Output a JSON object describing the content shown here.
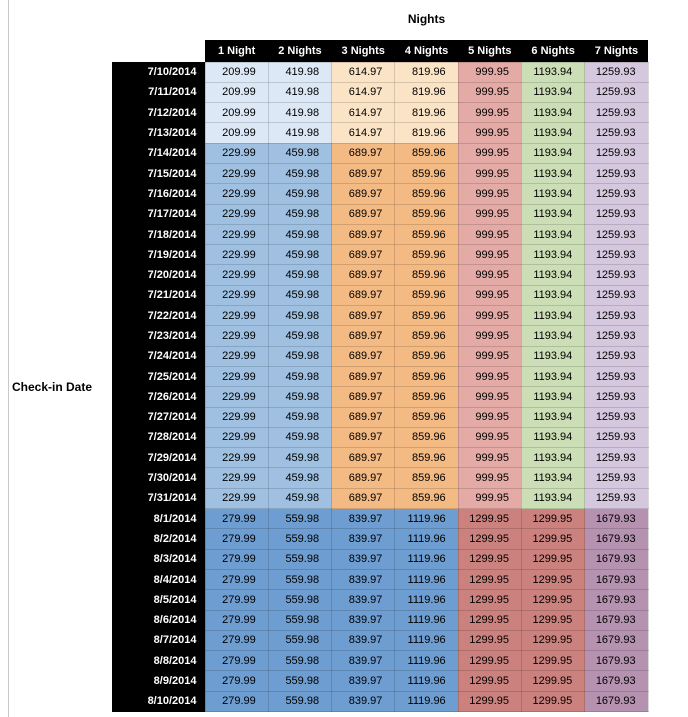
{
  "chart_data": {
    "type": "table",
    "title": "Nights",
    "row_axis_label": "Check-in Date",
    "columns": [
      "1 Night",
      "2 Nights",
      "3 Nights",
      "4 Nights",
      "5 Nights",
      "6 Nights",
      "7 Nights"
    ],
    "header_bg": "#000000",
    "header_text_color": "#ffffff",
    "band_colors": {
      "early": [
        "#DCE8F5",
        "#DCE8F5",
        "#FBE4C6",
        "#FBE4C6",
        "#E4ABA6",
        "#CCDEB6",
        "#D5C8DE"
      ],
      "mid": [
        "#9FC0E1",
        "#9FC0E1",
        "#F4BA83",
        "#F4BA83",
        "#E4ABA6",
        "#CCDEB6",
        "#D5C8DE"
      ],
      "late": [
        "#6D9DD1",
        "#6D9DD1",
        "#6D9DD1",
        "#6D9DD1",
        "#CB817D",
        "#CB817D",
        "#B692B1"
      ]
    },
    "rows": [
      {
        "date": "7/10/2014",
        "band": "early",
        "values": [
          "209.99",
          "419.98",
          "614.97",
          "819.96",
          "999.95",
          "1193.94",
          "1259.93"
        ]
      },
      {
        "date": "7/11/2014",
        "band": "early",
        "values": [
          "209.99",
          "419.98",
          "614.97",
          "819.96",
          "999.95",
          "1193.94",
          "1259.93"
        ]
      },
      {
        "date": "7/12/2014",
        "band": "early",
        "values": [
          "209.99",
          "419.98",
          "614.97",
          "819.96",
          "999.95",
          "1193.94",
          "1259.93"
        ]
      },
      {
        "date": "7/13/2014",
        "band": "early",
        "values": [
          "209.99",
          "419.98",
          "614.97",
          "819.96",
          "999.95",
          "1193.94",
          "1259.93"
        ]
      },
      {
        "date": "7/14/2014",
        "band": "mid",
        "values": [
          "229.99",
          "459.98",
          "689.97",
          "859.96",
          "999.95",
          "1193.94",
          "1259.93"
        ]
      },
      {
        "date": "7/15/2014",
        "band": "mid",
        "values": [
          "229.99",
          "459.98",
          "689.97",
          "859.96",
          "999.95",
          "1193.94",
          "1259.93"
        ]
      },
      {
        "date": "7/16/2014",
        "band": "mid",
        "values": [
          "229.99",
          "459.98",
          "689.97",
          "859.96",
          "999.95",
          "1193.94",
          "1259.93"
        ]
      },
      {
        "date": "7/17/2014",
        "band": "mid",
        "values": [
          "229.99",
          "459.98",
          "689.97",
          "859.96",
          "999.95",
          "1193.94",
          "1259.93"
        ]
      },
      {
        "date": "7/18/2014",
        "band": "mid",
        "values": [
          "229.99",
          "459.98",
          "689.97",
          "859.96",
          "999.95",
          "1193.94",
          "1259.93"
        ]
      },
      {
        "date": "7/19/2014",
        "band": "mid",
        "values": [
          "229.99",
          "459.98",
          "689.97",
          "859.96",
          "999.95",
          "1193.94",
          "1259.93"
        ]
      },
      {
        "date": "7/20/2014",
        "band": "mid",
        "values": [
          "229.99",
          "459.98",
          "689.97",
          "859.96",
          "999.95",
          "1193.94",
          "1259.93"
        ]
      },
      {
        "date": "7/21/2014",
        "band": "mid",
        "values": [
          "229.99",
          "459.98",
          "689.97",
          "859.96",
          "999.95",
          "1193.94",
          "1259.93"
        ]
      },
      {
        "date": "7/22/2014",
        "band": "mid",
        "values": [
          "229.99",
          "459.98",
          "689.97",
          "859.96",
          "999.95",
          "1193.94",
          "1259.93"
        ]
      },
      {
        "date": "7/23/2014",
        "band": "mid",
        "values": [
          "229.99",
          "459.98",
          "689.97",
          "859.96",
          "999.95",
          "1193.94",
          "1259.93"
        ]
      },
      {
        "date": "7/24/2014",
        "band": "mid",
        "values": [
          "229.99",
          "459.98",
          "689.97",
          "859.96",
          "999.95",
          "1193.94",
          "1259.93"
        ]
      },
      {
        "date": "7/25/2014",
        "band": "mid",
        "values": [
          "229.99",
          "459.98",
          "689.97",
          "859.96",
          "999.95",
          "1193.94",
          "1259.93"
        ]
      },
      {
        "date": "7/26/2014",
        "band": "mid",
        "values": [
          "229.99",
          "459.98",
          "689.97",
          "859.96",
          "999.95",
          "1193.94",
          "1259.93"
        ]
      },
      {
        "date": "7/27/2014",
        "band": "mid",
        "values": [
          "229.99",
          "459.98",
          "689.97",
          "859.96",
          "999.95",
          "1193.94",
          "1259.93"
        ]
      },
      {
        "date": "7/28/2014",
        "band": "mid",
        "values": [
          "229.99",
          "459.98",
          "689.97",
          "859.96",
          "999.95",
          "1193.94",
          "1259.93"
        ]
      },
      {
        "date": "7/29/2014",
        "band": "mid",
        "values": [
          "229.99",
          "459.98",
          "689.97",
          "859.96",
          "999.95",
          "1193.94",
          "1259.93"
        ]
      },
      {
        "date": "7/30/2014",
        "band": "mid",
        "values": [
          "229.99",
          "459.98",
          "689.97",
          "859.96",
          "999.95",
          "1193.94",
          "1259.93"
        ]
      },
      {
        "date": "7/31/2014",
        "band": "mid",
        "values": [
          "229.99",
          "459.98",
          "689.97",
          "859.96",
          "999.95",
          "1193.94",
          "1259.93"
        ]
      },
      {
        "date": "8/1/2014",
        "band": "late",
        "values": [
          "279.99",
          "559.98",
          "839.97",
          "1119.96",
          "1299.95",
          "1299.95",
          "1679.93"
        ]
      },
      {
        "date": "8/2/2014",
        "band": "late",
        "values": [
          "279.99",
          "559.98",
          "839.97",
          "1119.96",
          "1299.95",
          "1299.95",
          "1679.93"
        ]
      },
      {
        "date": "8/3/2014",
        "band": "late",
        "values": [
          "279.99",
          "559.98",
          "839.97",
          "1119.96",
          "1299.95",
          "1299.95",
          "1679.93"
        ]
      },
      {
        "date": "8/4/2014",
        "band": "late",
        "values": [
          "279.99",
          "559.98",
          "839.97",
          "1119.96",
          "1299.95",
          "1299.95",
          "1679.93"
        ]
      },
      {
        "date": "8/5/2014",
        "band": "late",
        "values": [
          "279.99",
          "559.98",
          "839.97",
          "1119.96",
          "1299.95",
          "1299.95",
          "1679.93"
        ]
      },
      {
        "date": "8/6/2014",
        "band": "late",
        "values": [
          "279.99",
          "559.98",
          "839.97",
          "1119.96",
          "1299.95",
          "1299.95",
          "1679.93"
        ]
      },
      {
        "date": "8/7/2014",
        "band": "late",
        "values": [
          "279.99",
          "559.98",
          "839.97",
          "1119.96",
          "1299.95",
          "1299.95",
          "1679.93"
        ]
      },
      {
        "date": "8/8/2014",
        "band": "late",
        "values": [
          "279.99",
          "559.98",
          "839.97",
          "1119.96",
          "1299.95",
          "1299.95",
          "1679.93"
        ]
      },
      {
        "date": "8/9/2014",
        "band": "late",
        "values": [
          "279.99",
          "559.98",
          "839.97",
          "1119.96",
          "1299.95",
          "1299.95",
          "1679.93"
        ]
      },
      {
        "date": "8/10/2014",
        "band": "late",
        "values": [
          "279.99",
          "559.98",
          "839.97",
          "1119.96",
          "1299.95",
          "1299.95",
          "1679.93"
        ]
      }
    ]
  }
}
